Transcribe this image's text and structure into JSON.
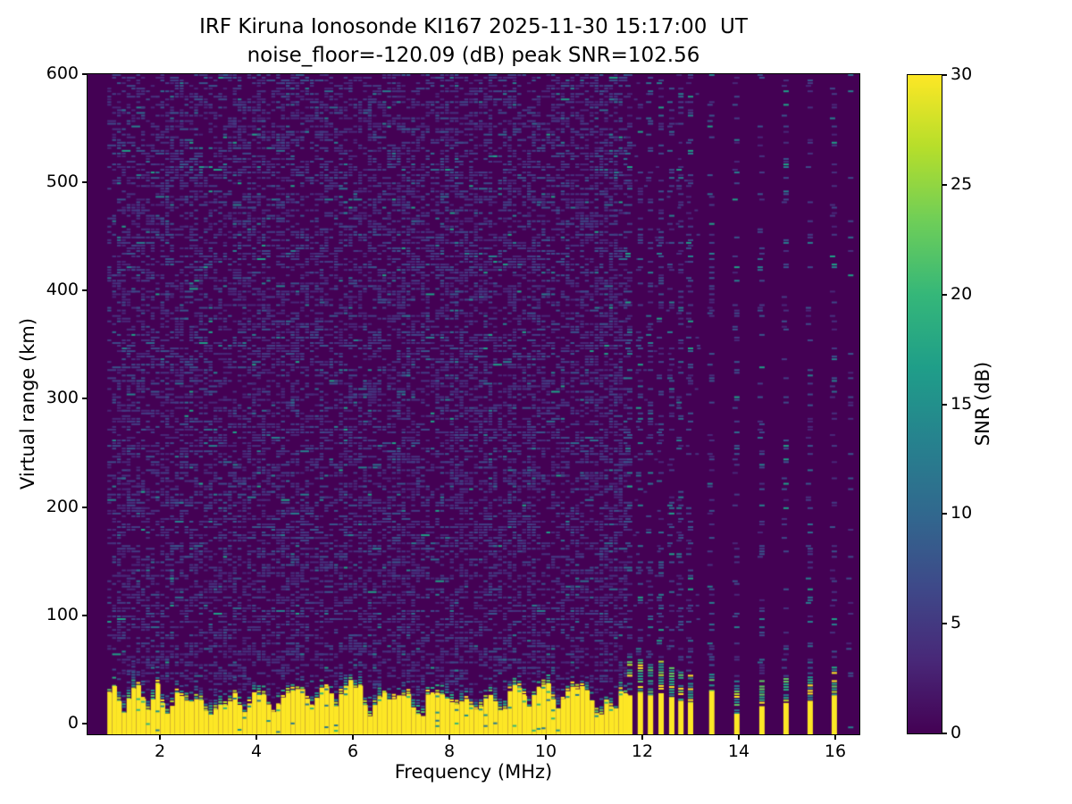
{
  "figure": {
    "title_line1": "IRF Kiruna Ionosonde KI167 2025-11-30 15:17:00  UT",
    "title_line2": "noise_floor=-120.09 (dB) peak SNR=102.56"
  },
  "chart_data": {
    "type": "heatmap",
    "station": "KI167",
    "site": "IRF Kiruna Ionosonde",
    "timestamp_ut": "2025-11-30 15:17:00",
    "noise_floor_db": -120.09,
    "peak_snr_db": 102.56,
    "xlabel": "Frequency (MHz)",
    "ylabel": "Virtual range (km)",
    "xlim": [
      0.5,
      16.5
    ],
    "ylim": [
      -10,
      600
    ],
    "xticks": [
      2,
      4,
      6,
      8,
      10,
      12,
      14,
      16
    ],
    "yticks": [
      0,
      100,
      200,
      300,
      400,
      500,
      600
    ],
    "grid": false,
    "legend": "none",
    "colorbar": {
      "label": "SNR (dB)",
      "ticks": [
        0,
        5,
        10,
        15,
        20,
        25,
        30
      ],
      "min": 0,
      "max": 30,
      "colormap": "viridis",
      "stops_bottom_to_top": [
        "#440154",
        "#482878",
        "#3e4989",
        "#31688e",
        "#26828e",
        "#1f9e89",
        "#35b779",
        "#6ece58",
        "#b5de2b",
        "#fde725"
      ]
    },
    "colors": {
      "background": "#440154",
      "band": "#fde725",
      "noise_palette": {
        "faint": [
          "#482878",
          "#46327e",
          "#433d84"
        ],
        "medium": [
          "#3e4a89",
          "#39558c"
        ],
        "bright": [
          "#2e6d8e",
          "#27808e"
        ],
        "rare": [
          "#1fa187"
        ]
      },
      "fringe_hot": [
        "#fde725",
        "#b5de2b",
        "#5ec962",
        "#22a884"
      ],
      "fringe_mid": [
        "#21918c",
        "#2a788e",
        "#27ad81"
      ],
      "fringe_cold": [
        "#355f8d",
        "#3e4989",
        "#482878"
      ],
      "band_inner": [
        "#21918c",
        "#35b779",
        "#2a788e"
      ]
    },
    "features": {
      "sweep_start_mhz": 0.91,
      "band_end_mhz": 11.61,
      "cell_mhz": 0.1,
      "background_noise": "speckled horizontal dashes, SNR roughly 0-8 dB over dark 0 dB floor",
      "continuous_band": {
        "freq_range_mhz": [
          0.91,
          11.61
        ],
        "typical_top_km": [
          20,
          40
        ],
        "snr": "saturated at colormap max (>=30 dB), green/teal fringe above top edge"
      },
      "band_notches": [
        {
          "freq_mhz": 1.25,
          "top_km": 10
        },
        {
          "freq_mhz": 1.7,
          "top_km": 12
        },
        {
          "freq_mhz": 2.1,
          "top_km": 7
        },
        {
          "freq_mhz": 3.0,
          "top_km": 6
        },
        {
          "freq_mhz": 3.35,
          "top_km": 14
        },
        {
          "freq_mhz": 3.7,
          "top_km": 9
        },
        {
          "freq_mhz": 4.35,
          "top_km": 8
        },
        {
          "freq_mhz": 5.1,
          "top_km": 15
        },
        {
          "freq_mhz": 5.6,
          "top_km": 16
        },
        {
          "freq_mhz": 6.3,
          "top_km": 5
        },
        {
          "freq_mhz": 7.35,
          "top_km": 6
        },
        {
          "freq_mhz": 8.1,
          "top_km": 16
        },
        {
          "freq_mhz": 8.55,
          "top_km": 13
        },
        {
          "freq_mhz": 9.05,
          "top_km": 12
        },
        {
          "freq_mhz": 9.6,
          "top_km": 15
        },
        {
          "freq_mhz": 10.2,
          "top_km": 11
        },
        {
          "freq_mhz": 11.05,
          "top_km": 7
        },
        {
          "freq_mhz": 11.35,
          "top_km": 13
        }
      ],
      "discrete_stripes": [
        {
          "freq_mhz": 11.74,
          "yellow_top_km": 26,
          "scatter_top_km": 60
        },
        {
          "freq_mhz": 11.96,
          "yellow_top_km": 28,
          "scatter_top_km": 62
        },
        {
          "freq_mhz": 12.17,
          "yellow_top_km": 26,
          "scatter_top_km": 55
        },
        {
          "freq_mhz": 12.39,
          "yellow_top_km": 28,
          "scatter_top_km": 58
        },
        {
          "freq_mhz": 12.61,
          "yellow_top_km": 24,
          "scatter_top_km": 52
        },
        {
          "freq_mhz": 12.8,
          "yellow_top_km": 21,
          "scatter_top_km": 48
        },
        {
          "freq_mhz": 13.0,
          "yellow_top_km": 19,
          "scatter_top_km": 45
        },
        {
          "freq_mhz": 13.44,
          "yellow_top_km": 30,
          "scatter_top_km": 46
        },
        {
          "freq_mhz": 13.96,
          "yellow_top_km": 9,
          "scatter_top_km": 38
        },
        {
          "freq_mhz": 14.48,
          "yellow_top_km": 16,
          "scatter_top_km": 40
        },
        {
          "freq_mhz": 14.98,
          "yellow_top_km": 19,
          "scatter_top_km": 42
        },
        {
          "freq_mhz": 15.48,
          "yellow_top_km": 21,
          "scatter_top_km": 46
        },
        {
          "freq_mhz": 15.98,
          "yellow_top_km": 26,
          "scatter_top_km": 55
        },
        {
          "freq_mhz": 16.32,
          "yellow_top_km": -10,
          "scatter_top_km": -8,
          "density": 0.1
        }
      ]
    }
  }
}
